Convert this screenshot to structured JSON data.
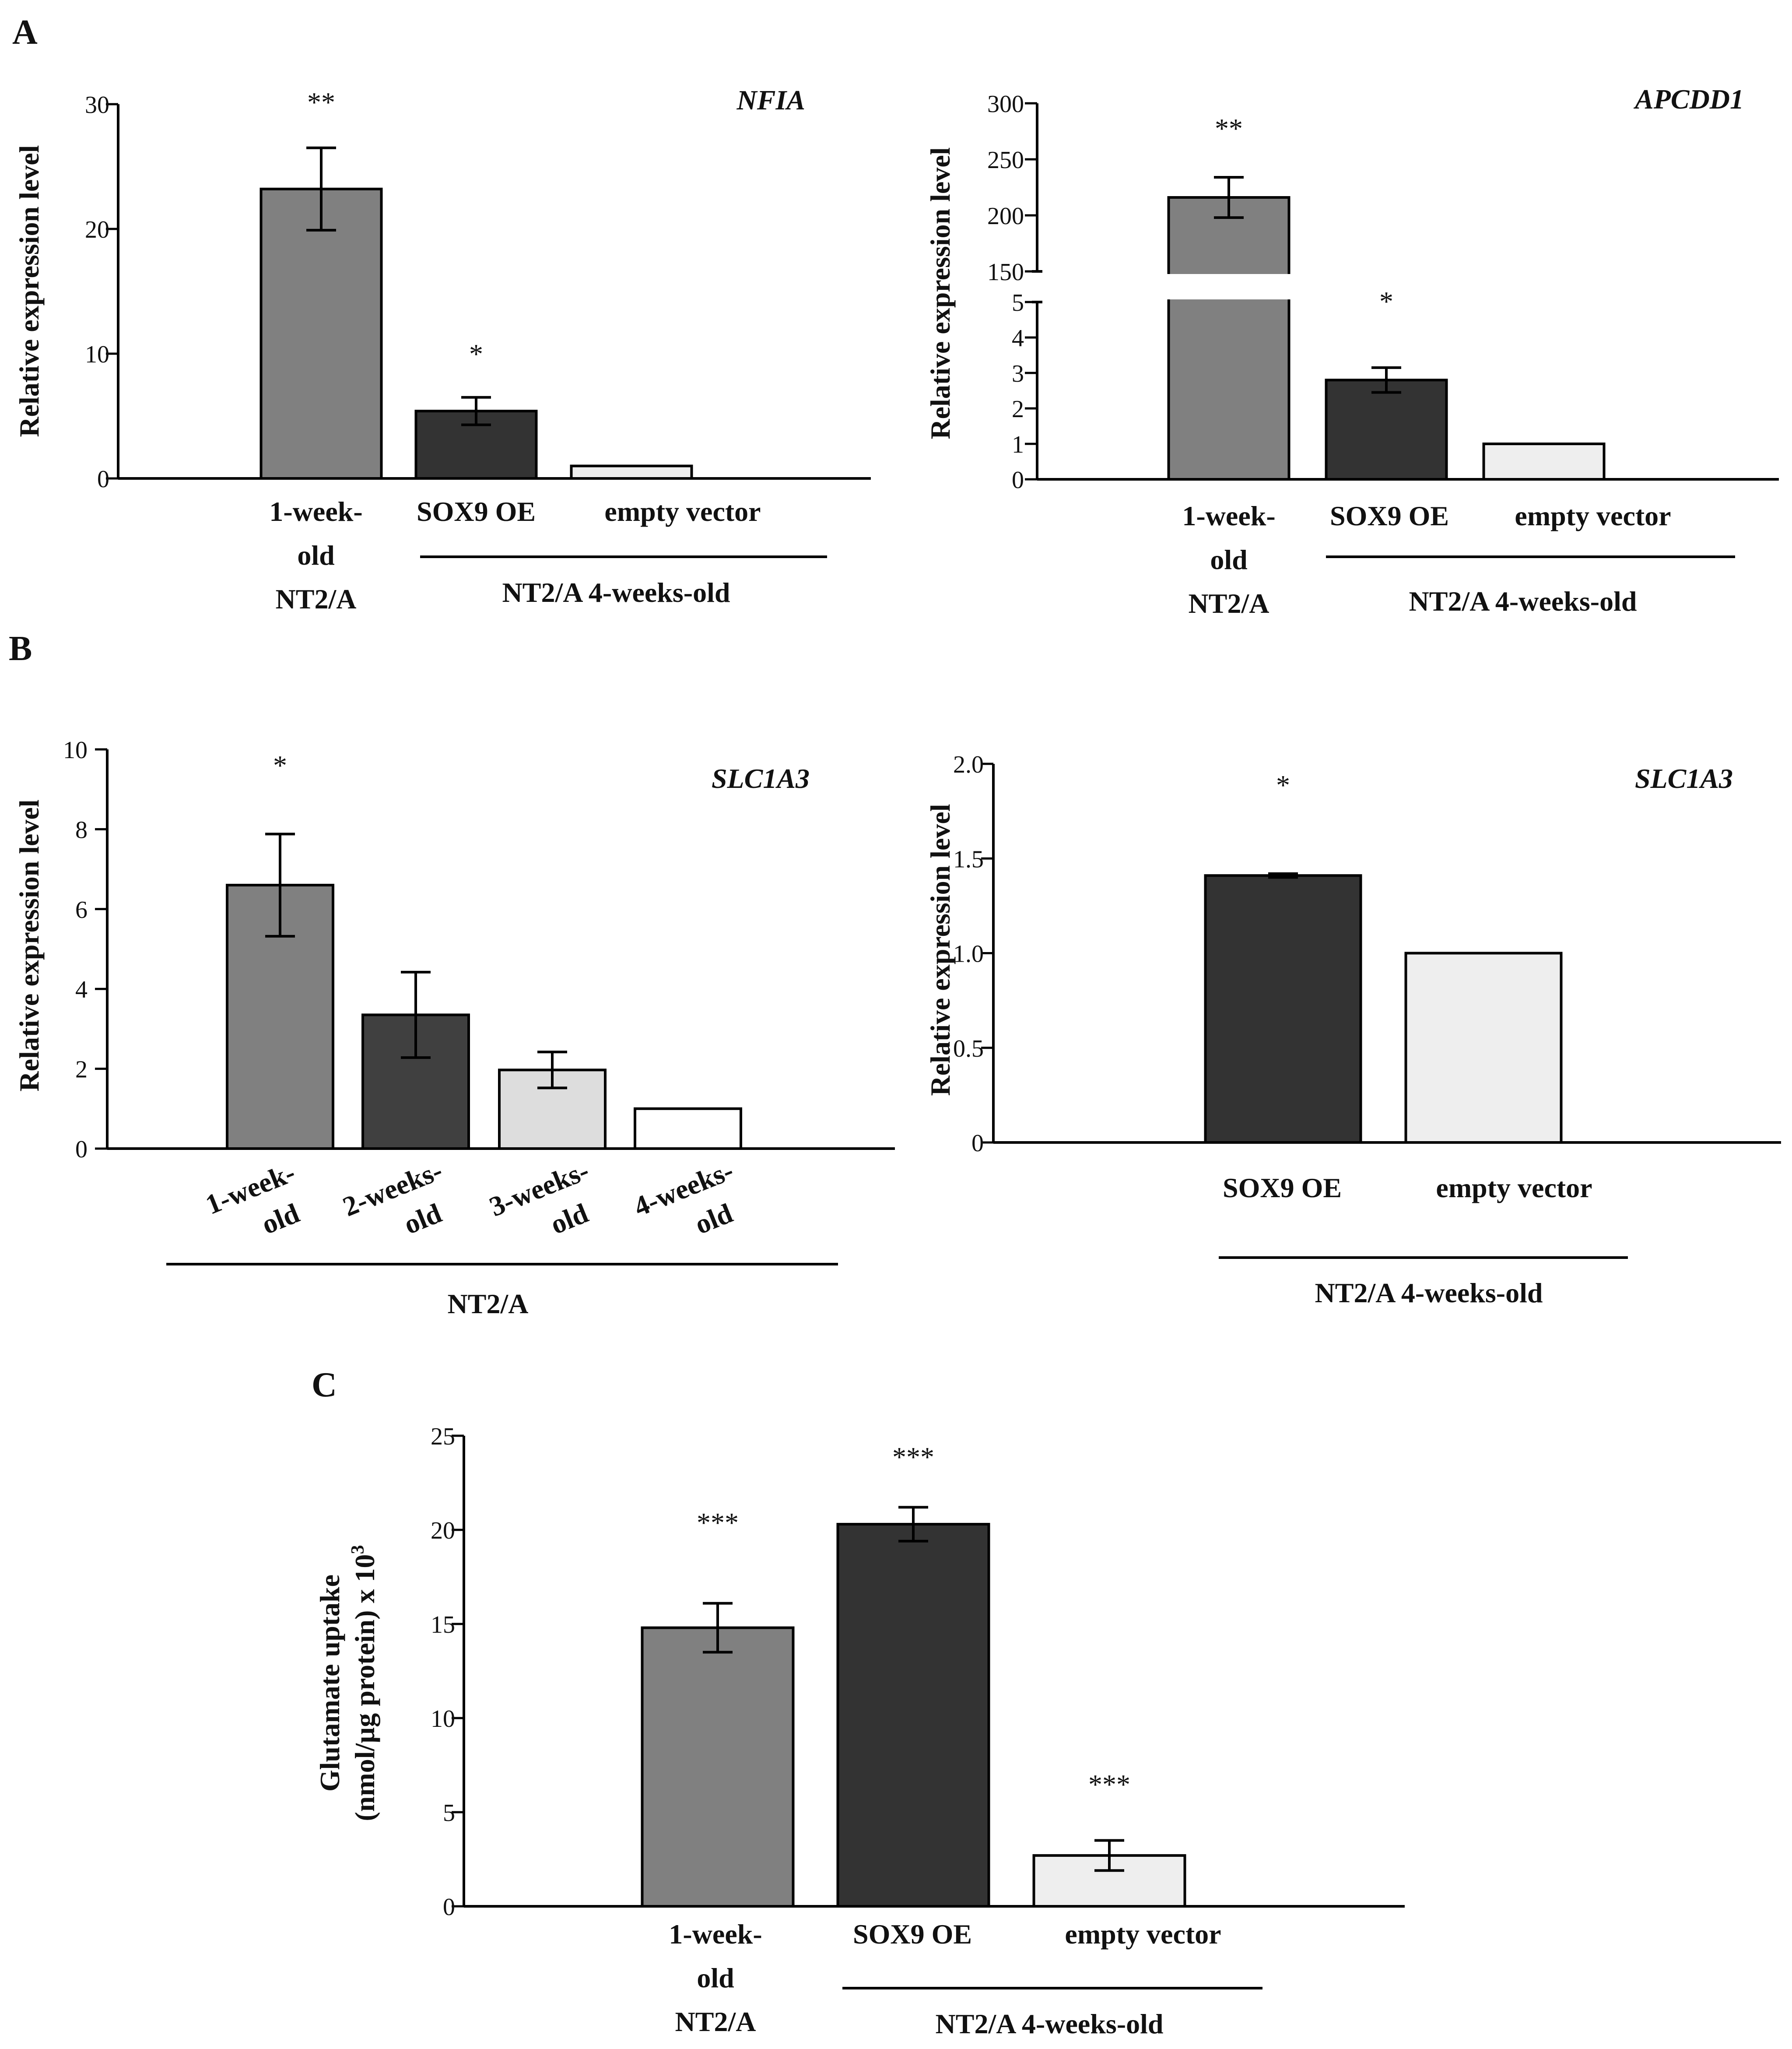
{
  "figure": {
    "panels": [
      {
        "id": "A",
        "label": "A"
      },
      {
        "id": "B",
        "label": "B"
      },
      {
        "id": "C",
        "label": "C"
      }
    ]
  },
  "chart_data": [
    {
      "id": "A-left",
      "panel": "A",
      "type": "bar",
      "title": "NFIA",
      "ylabel": "Relative expression level",
      "ylim": [
        0,
        30
      ],
      "yticks": [
        "0",
        "10",
        "20",
        "30"
      ],
      "categories": [
        "1-week- old NT2/A",
        "SOX9 OE",
        "empty vector"
      ],
      "category_lines": [
        [
          "1-week-",
          "old",
          "NT2/A"
        ],
        [
          "SOX9 OE"
        ],
        [
          "empty vector"
        ]
      ],
      "values": [
        23.2,
        5.4,
        1.0
      ],
      "errors": [
        3.3,
        1.1,
        0
      ],
      "significance": [
        "**",
        "*",
        ""
      ],
      "colors": [
        "#808080",
        "#333333",
        "#eeeeee"
      ],
      "group_label": "NT2/A 4-weeks-old"
    },
    {
      "id": "A-right",
      "panel": "A",
      "type": "bar",
      "title": "APCDD1",
      "ylabel": "Relative expression level",
      "broken_axis": true,
      "lower_ylim": [
        0,
        5
      ],
      "upper_ylim": [
        150,
        300
      ],
      "yticks_lower": [
        "0",
        "1",
        "2",
        "3",
        "4",
        "5"
      ],
      "yticks_upper": [
        "150",
        "200",
        "250",
        "300"
      ],
      "categories": [
        "1-week- old NT2/A",
        "SOX9 OE",
        "empty vector"
      ],
      "category_lines": [
        [
          "1-week-",
          "old",
          "NT2/A"
        ],
        [
          "SOX9 OE"
        ],
        [
          "empty vector"
        ]
      ],
      "values": [
        216,
        2.8,
        1.0
      ],
      "errors": [
        18,
        0.35,
        0
      ],
      "significance": [
        "**",
        "*",
        ""
      ],
      "colors": [
        "#808080",
        "#333333",
        "#eeeeee"
      ],
      "group_label": "NT2/A 4-weeks-old"
    },
    {
      "id": "B-left",
      "panel": "B",
      "type": "bar",
      "title": "SLC1A3",
      "ylabel": "Relative expression level",
      "ylim": [
        0,
        10
      ],
      "yticks": [
        "0",
        "2",
        "4",
        "6",
        "8",
        "10"
      ],
      "categories": [
        "1-week- old",
        "2-weeks- old",
        "3-weeks- old",
        "4-weeks- old"
      ],
      "category_lines": [
        [
          "1-week-",
          "old"
        ],
        [
          "2-weeks-",
          "old"
        ],
        [
          "3-weeks-",
          "old"
        ],
        [
          "4-weeks-",
          "old"
        ]
      ],
      "values": [
        6.6,
        3.35,
        1.97,
        1.0
      ],
      "errors": [
        1.28,
        1.07,
        0.45,
        0
      ],
      "significance": [
        "*",
        "",
        "",
        ""
      ],
      "colors": [
        "#808080",
        "#404040",
        "#dddddd",
        "#ffffff"
      ],
      "group_label": "NT2/A"
    },
    {
      "id": "B-right",
      "panel": "B",
      "type": "bar",
      "title": "SLC1A3",
      "ylabel": "Relative expression level",
      "ylim": [
        0,
        2.0
      ],
      "yticks": [
        "0",
        "0.5",
        "1.0",
        "1.5",
        "2.0"
      ],
      "categories": [
        "SOX9 OE",
        "empty vector"
      ],
      "category_lines": [
        [
          "SOX9 OE"
        ],
        [
          "empty vector"
        ]
      ],
      "values": [
        1.41,
        1.0
      ],
      "errors": [
        0.01,
        0
      ],
      "significance": [
        "*",
        ""
      ],
      "colors": [
        "#333333",
        "#eeeeee"
      ],
      "group_label": "NT2/A 4-weeks-old"
    },
    {
      "id": "C",
      "panel": "C",
      "type": "bar",
      "title": "",
      "ylabel": "Glutamate uptake",
      "ylabel2": "(nmol/µg protein) x 10",
      "ylabel2_sup": "3",
      "ylim": [
        0,
        25
      ],
      "yticks": [
        "0",
        "5",
        "10",
        "15",
        "20",
        "25"
      ],
      "categories": [
        "1-week- old NT2/A",
        "SOX9 OE",
        "empty vector"
      ],
      "category_lines": [
        [
          "1-week-",
          "old",
          "NT2/A"
        ],
        [
          "SOX9 OE"
        ],
        [
          "empty vector"
        ]
      ],
      "values": [
        14.8,
        20.3,
        2.7
      ],
      "errors": [
        1.3,
        0.9,
        0.8
      ],
      "significance": [
        "***",
        "***",
        "***"
      ],
      "colors": [
        "#808080",
        "#333333",
        "#eeeeee"
      ],
      "group_label": "NT2/A 4-weeks-old"
    }
  ]
}
